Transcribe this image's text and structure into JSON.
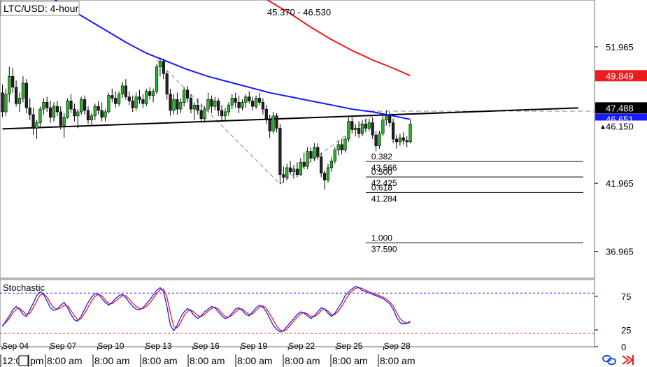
{
  "chart_data": {
    "type": "candlestick",
    "title": "LTC/USD: 4-hour",
    "range_label": "45.370 - 46.530",
    "price_axis": {
      "ylim": [
        35.0,
        55.4
      ],
      "ticks": [
        {
          "value": 51.965,
          "label": "51.965"
        },
        {
          "value": 41.965,
          "label": "41.965"
        },
        {
          "value": 36.965,
          "label": "36.965"
        }
      ]
    },
    "price_badges": [
      {
        "value": 49.849,
        "label": "49.849",
        "bg": "#ee1c1c",
        "fg": "#ffffff"
      },
      {
        "value": 47.488,
        "label": "47.488",
        "bg": "#000000",
        "fg": "#ffffff"
      },
      {
        "value": 46.651,
        "label": "46.651",
        "bg": "#1a1aff",
        "fg": "#ffffff"
      },
      {
        "value": 46.15,
        "label": "46.150",
        "bg": "#ffffff",
        "fg": "#000000",
        "marker": "▲"
      }
    ],
    "x_labels": [
      "Sep 04",
      "Sep 07",
      "Sep 10",
      "Sep 13",
      "Sep 16",
      "Sep 19",
      "Sep 22",
      "Sep 25",
      "Sep 28"
    ],
    "bottom_time_labels": [
      "12:0",
      "pm",
      "8:00 am",
      "8:00 am",
      "8:00 am",
      "8:00 am",
      "8:00 am",
      "8:00 am",
      "8:00 am",
      "8:00 am"
    ],
    "candles_per_day": 6,
    "ohlc": [
      [
        48.6,
        49.2,
        46.8,
        47.2
      ],
      [
        47.2,
        48.9,
        46.9,
        48.5
      ],
      [
        48.5,
        50.5,
        47.9,
        49.8
      ],
      [
        49.8,
        50.4,
        48.6,
        49.0
      ],
      [
        49.0,
        49.5,
        47.6,
        47.8
      ],
      [
        47.8,
        48.6,
        47.2,
        48.2
      ],
      [
        48.2,
        49.8,
        47.9,
        49.3
      ],
      [
        49.3,
        49.6,
        47.1,
        47.5
      ],
      [
        47.5,
        48.2,
        46.6,
        47.0
      ],
      [
        47.0,
        47.5,
        45.5,
        46.0
      ],
      [
        46.0,
        46.6,
        45.2,
        46.4
      ],
      [
        46.4,
        47.6,
        46.1,
        47.4
      ],
      [
        47.4,
        48.2,
        47.0,
        47.9
      ],
      [
        47.9,
        48.3,
        47.2,
        47.5
      ],
      [
        47.5,
        48.0,
        46.4,
        46.8
      ],
      [
        46.8,
        47.9,
        46.5,
        47.6
      ],
      [
        47.6,
        48.0,
        46.9,
        47.2
      ],
      [
        47.2,
        47.6,
        45.9,
        46.2
      ],
      [
        46.2,
        47.1,
        45.3,
        46.8
      ],
      [
        46.8,
        48.2,
        46.7,
        48.0
      ],
      [
        48.0,
        48.5,
        47.1,
        47.4
      ],
      [
        47.4,
        47.8,
        46.5,
        46.9
      ],
      [
        46.9,
        47.4,
        46.0,
        47.2
      ],
      [
        47.2,
        48.3,
        47.0,
        48.1
      ],
      [
        48.1,
        48.4,
        47.0,
        47.3
      ],
      [
        47.3,
        47.6,
        46.3,
        46.6
      ],
      [
        46.6,
        47.1,
        46.2,
        46.9
      ],
      [
        46.9,
        47.8,
        46.6,
        47.6
      ],
      [
        47.6,
        48.0,
        47.0,
        47.3
      ],
      [
        47.3,
        47.9,
        46.5,
        46.8
      ],
      [
        46.8,
        47.4,
        46.5,
        47.2
      ],
      [
        47.2,
        48.6,
        47.1,
        48.4
      ],
      [
        48.4,
        48.9,
        47.9,
        48.2
      ],
      [
        48.2,
        48.7,
        47.5,
        47.8
      ],
      [
        47.8,
        48.7,
        47.6,
        48.5
      ],
      [
        48.5,
        49.4,
        48.2,
        49.1
      ],
      [
        49.1,
        49.6,
        48.1,
        48.3
      ],
      [
        48.3,
        48.7,
        47.7,
        48.0
      ],
      [
        48.0,
        48.4,
        47.2,
        47.5
      ],
      [
        47.5,
        48.6,
        47.3,
        48.3
      ],
      [
        48.3,
        48.8,
        47.8,
        48.1
      ],
      [
        48.1,
        48.5,
        47.5,
        47.8
      ],
      [
        47.8,
        48.9,
        47.6,
        48.7
      ],
      [
        48.7,
        49.0,
        48.1,
        48.4
      ],
      [
        48.4,
        48.9,
        47.9,
        48.7
      ],
      [
        48.7,
        50.7,
        48.5,
        50.5
      ],
      [
        50.5,
        51.2,
        49.8,
        50.9
      ],
      [
        50.9,
        51.1,
        49.6,
        50.0
      ],
      [
        50.0,
        50.2,
        48.1,
        48.5
      ],
      [
        48.5,
        48.9,
        46.9,
        47.3
      ],
      [
        47.3,
        48.5,
        47.0,
        48.1
      ],
      [
        48.1,
        48.6,
        47.0,
        47.4
      ],
      [
        47.4,
        48.2,
        47.1,
        47.9
      ],
      [
        47.9,
        49.0,
        47.6,
        48.8
      ],
      [
        48.8,
        49.1,
        47.9,
        48.2
      ],
      [
        48.2,
        48.5,
        47.1,
        47.4
      ],
      [
        47.4,
        47.9,
        46.6,
        47.7
      ],
      [
        47.7,
        48.2,
        47.0,
        47.3
      ],
      [
        47.3,
        47.8,
        46.4,
        46.7
      ],
      [
        46.7,
        47.6,
        46.4,
        47.4
      ],
      [
        47.4,
        48.6,
        47.2,
        48.1
      ],
      [
        48.1,
        48.4,
        47.1,
        47.6
      ],
      [
        47.6,
        48.3,
        47.3,
        48.0
      ],
      [
        48.0,
        48.2,
        46.9,
        47.3
      ],
      [
        47.3,
        47.7,
        46.5,
        46.9
      ],
      [
        46.9,
        47.5,
        46.6,
        47.2
      ],
      [
        47.2,
        47.9,
        46.9,
        47.7
      ],
      [
        47.7,
        48.5,
        47.4,
        48.2
      ],
      [
        48.2,
        48.6,
        47.5,
        47.9
      ],
      [
        47.9,
        48.4,
        47.1,
        47.5
      ],
      [
        47.5,
        48.1,
        47.3,
        47.9
      ],
      [
        47.9,
        48.5,
        47.5,
        48.3
      ],
      [
        48.3,
        48.7,
        47.8,
        48.0
      ],
      [
        48.0,
        48.3,
        47.3,
        47.6
      ],
      [
        47.6,
        48.4,
        47.4,
        48.2
      ],
      [
        48.2,
        48.6,
        47.7,
        47.9
      ],
      [
        47.9,
        48.2,
        47.0,
        47.4
      ],
      [
        47.4,
        47.7,
        46.3,
        46.6
      ],
      [
        46.6,
        47.0,
        45.3,
        45.8
      ],
      [
        45.8,
        47.2,
        45.6,
        46.9
      ],
      [
        46.9,
        47.1,
        45.7,
        46.0
      ],
      [
        46.0,
        46.3,
        41.9,
        42.6
      ],
      [
        42.6,
        43.2,
        42.0,
        42.4
      ],
      [
        42.4,
        43.4,
        42.2,
        43.1
      ],
      [
        43.1,
        43.6,
        42.6,
        42.8
      ],
      [
        42.8,
        43.3,
        42.3,
        43.0
      ],
      [
        43.0,
        43.5,
        42.4,
        42.6
      ],
      [
        42.6,
        43.8,
        42.5,
        43.5
      ],
      [
        43.5,
        44.2,
        43.0,
        43.2
      ],
      [
        43.2,
        44.6,
        43.0,
        44.3
      ],
      [
        44.3,
        44.6,
        43.5,
        43.8
      ],
      [
        43.8,
        44.9,
        43.6,
        44.6
      ],
      [
        44.6,
        44.9,
        43.7,
        43.9
      ],
      [
        43.9,
        44.2,
        42.4,
        42.7
      ],
      [
        42.7,
        42.9,
        41.5,
        42.2
      ],
      [
        42.2,
        43.4,
        42.0,
        43.1
      ],
      [
        43.1,
        43.9,
        42.8,
        43.6
      ],
      [
        43.6,
        44.6,
        43.4,
        44.4
      ],
      [
        44.4,
        45.1,
        44.0,
        44.8
      ],
      [
        44.8,
        45.2,
        44.1,
        44.4
      ],
      [
        44.4,
        45.4,
        44.2,
        45.2
      ],
      [
        45.2,
        46.8,
        45.0,
        46.5
      ],
      [
        46.5,
        46.8,
        45.6,
        45.9
      ],
      [
        45.9,
        46.3,
        45.4,
        46.0
      ],
      [
        46.0,
        46.5,
        45.3,
        45.6
      ],
      [
        45.6,
        46.6,
        45.4,
        46.3
      ],
      [
        46.3,
        46.7,
        45.7,
        46.0
      ],
      [
        46.0,
        46.7,
        45.8,
        46.4
      ],
      [
        46.4,
        46.8,
        45.2,
        45.5
      ],
      [
        45.5,
        45.8,
        44.3,
        44.7
      ],
      [
        44.7,
        45.8,
        44.5,
        45.6
      ],
      [
        45.6,
        46.9,
        45.4,
        46.6
      ],
      [
        46.6,
        47.3,
        46.2,
        46.9
      ],
      [
        46.9,
        47.2,
        46.1,
        46.4
      ],
      [
        46.4,
        46.7,
        44.9,
        45.2
      ],
      [
        45.2,
        45.5,
        44.5,
        45.0
      ],
      [
        45.0,
        45.6,
        44.7,
        45.3
      ],
      [
        45.3,
        45.7,
        44.8,
        45.1
      ],
      [
        45.1,
        45.4,
        44.6,
        45.0
      ],
      [
        45.0,
        46.6,
        44.9,
        46.3
      ]
    ],
    "moving_averages": [
      {
        "color": "#1a1aff",
        "values": [
          [
            0,
            57.5
          ],
          [
            6,
            56.8
          ],
          [
            12,
            55.9
          ],
          [
            18,
            55.0
          ],
          [
            24,
            54.1
          ],
          [
            30,
            53.2
          ],
          [
            36,
            52.3
          ],
          [
            42,
            51.5
          ],
          [
            48,
            50.9
          ],
          [
            54,
            50.3
          ],
          [
            60,
            49.8
          ],
          [
            66,
            49.4
          ],
          [
            72,
            49.0
          ],
          [
            78,
            48.6
          ],
          [
            84,
            48.3
          ],
          [
            90,
            48.0
          ],
          [
            96,
            47.7
          ],
          [
            102,
            47.4
          ],
          [
            108,
            47.2
          ],
          [
            114,
            46.9
          ],
          [
            119,
            46.651
          ]
        ]
      },
      {
        "color": "#ee1c1c",
        "values": [
          [
            72,
            56.2
          ],
          [
            78,
            55.3
          ],
          [
            84,
            54.4
          ],
          [
            90,
            53.4
          ],
          [
            96,
            52.5
          ],
          [
            102,
            51.7
          ],
          [
            108,
            51.0
          ],
          [
            114,
            50.4
          ],
          [
            119,
            49.849
          ]
        ]
      }
    ],
    "trendline": {
      "color": "#000000",
      "from": [
        0,
        45.95
      ],
      "to": [
        168,
        47.488
      ]
    },
    "resistance_dashed": {
      "color": "#8a8a8a",
      "value": 47.25,
      "from_index": 105
    },
    "fib_dashed_points": [
      [
        45,
        51.0
      ],
      [
        81,
        41.9
      ],
      [
        110,
        47.3
      ]
    ],
    "fibonacci": {
      "from_index": 106,
      "levels": [
        {
          "ratio": "0.382",
          "price": "43.566",
          "value": 43.566
        },
        {
          "ratio": "0.500",
          "price": "42.425",
          "value": 42.425
        },
        {
          "ratio": "0.618",
          "price": "41.284",
          "value": 41.284
        },
        {
          "ratio": "1.000",
          "price": "37.590",
          "value": 37.59
        }
      ]
    },
    "stochastic": {
      "title": "Stochastic",
      "ylim": [
        0,
        100
      ],
      "ticks": [
        {
          "value": 75,
          "label": "75"
        },
        {
          "value": 25,
          "label": "25"
        },
        {
          "value": 0,
          "label": "0"
        }
      ],
      "upper_level": 80,
      "lower_level": 20,
      "k": [
        30,
        38,
        46,
        55,
        60,
        56,
        48,
        45,
        55,
        65,
        76,
        82,
        78,
        68,
        58,
        54,
        56,
        62,
        66,
        58,
        48,
        40,
        38,
        46,
        56,
        66,
        74,
        79,
        78,
        72,
        66,
        62,
        66,
        72,
        76,
        78,
        73,
        66,
        60,
        56,
        55,
        58,
        64,
        70,
        77,
        84,
        88,
        82,
        60,
        32,
        24,
        32,
        44,
        52,
        57,
        53,
        46,
        42,
        46,
        52,
        56,
        60,
        58,
        52,
        46,
        42,
        44,
        50,
        56,
        58,
        54,
        48,
        46,
        52,
        58,
        62,
        59,
        52,
        42,
        32,
        26,
        22,
        24,
        30,
        36,
        42,
        48,
        52,
        50,
        46,
        42,
        46,
        52,
        58,
        56,
        50,
        45,
        50,
        58,
        66,
        76,
        82,
        86,
        90,
        88,
        84,
        82,
        80,
        78,
        76,
        74,
        72,
        68,
        64,
        56,
        44,
        36,
        34,
        35,
        38
      ],
      "d": [
        32,
        36,
        42,
        50,
        56,
        57,
        53,
        48,
        50,
        58,
        68,
        77,
        79,
        74,
        65,
        58,
        56,
        58,
        62,
        61,
        54,
        46,
        40,
        42,
        50,
        59,
        68,
        75,
        78,
        76,
        70,
        65,
        64,
        68,
        72,
        76,
        76,
        71,
        65,
        60,
        57,
        57,
        60,
        65,
        72,
        79,
        85,
        86,
        74,
        50,
        30,
        28,
        36,
        46,
        53,
        55,
        51,
        46,
        45,
        48,
        53,
        57,
        59,
        56,
        50,
        45,
        44,
        47,
        52,
        56,
        56,
        52,
        48,
        49,
        54,
        59,
        61,
        57,
        49,
        40,
        31,
        25,
        23,
        26,
        32,
        38,
        44,
        49,
        51,
        49,
        45,
        45,
        48,
        54,
        56,
        53,
        48,
        48,
        53,
        60,
        69,
        77,
        83,
        87,
        88,
        87,
        84,
        82,
        80,
        78,
        76,
        74,
        71,
        67,
        61,
        51,
        42,
        37,
        35,
        36
      ]
    }
  }
}
